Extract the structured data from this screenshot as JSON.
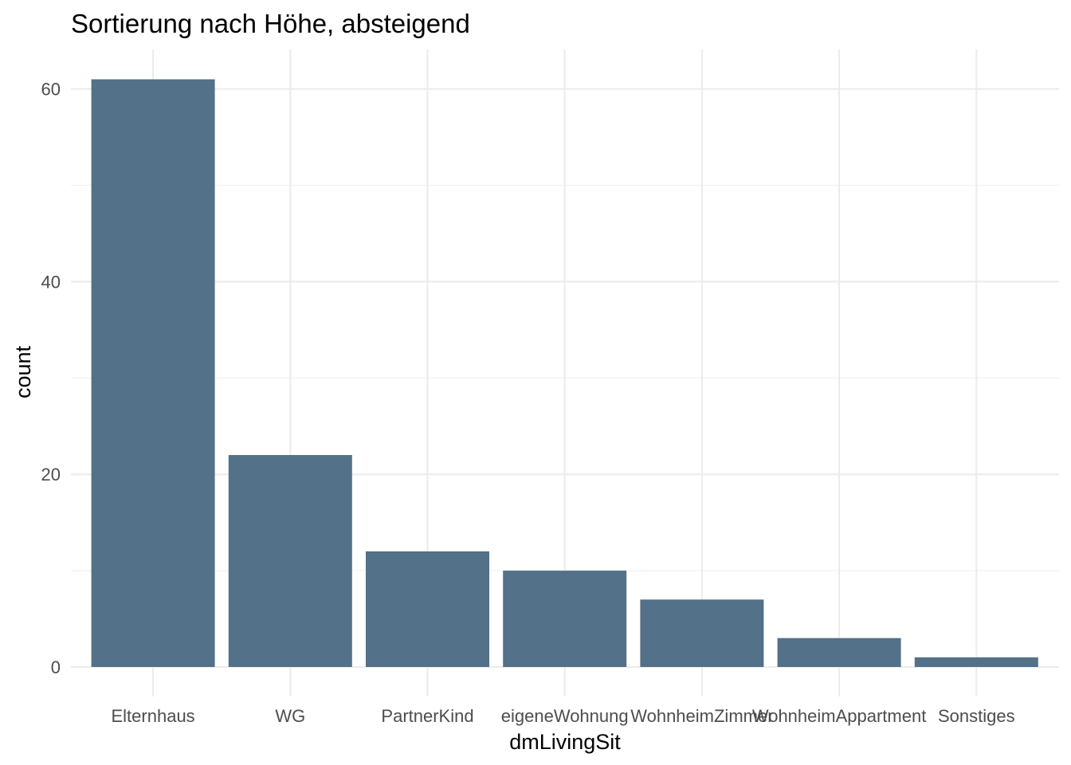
{
  "chart_data": {
    "type": "bar",
    "title": "Sortierung nach Höhe, absteigend",
    "xlabel": "dmLivingSit",
    "ylabel": "count",
    "categories": [
      "Elternhaus",
      "WG",
      "PartnerKind",
      "eigeneWohnung",
      "WohnheimZimmer",
      "WohnheimAppartment",
      "Sonstiges"
    ],
    "values": [
      61,
      22,
      12,
      10,
      7,
      3,
      1
    ],
    "ylim": [
      0,
      64
    ],
    "yticks": [
      0,
      20,
      40,
      60
    ],
    "ytick_labels": [
      "0",
      "20",
      "40",
      "60"
    ],
    "grid": true,
    "bar_color": "#537188"
  }
}
